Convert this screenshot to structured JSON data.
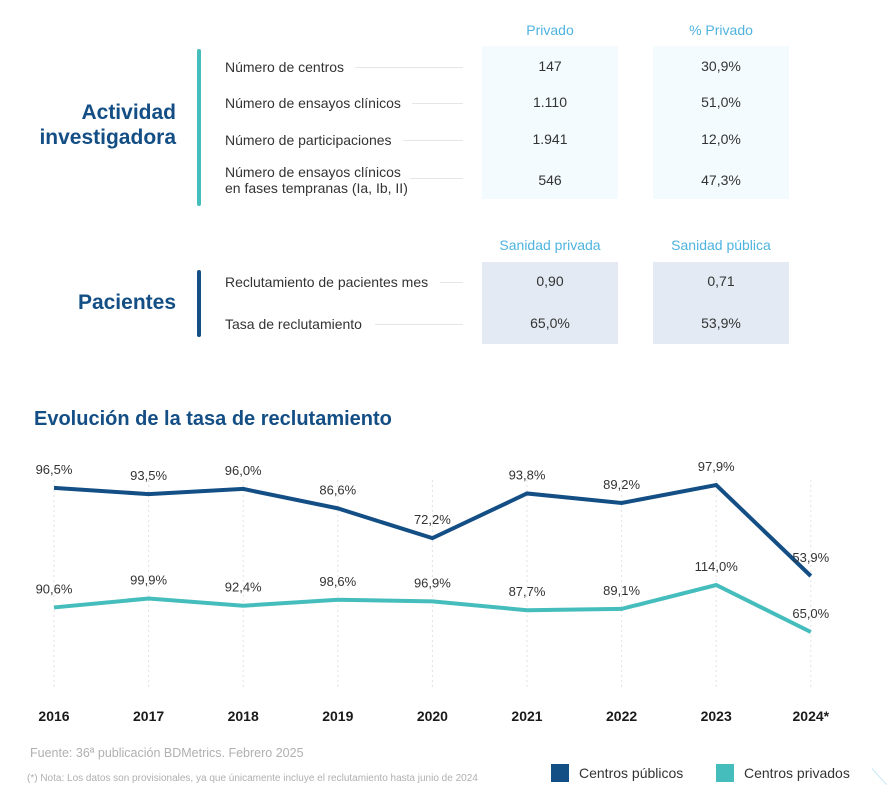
{
  "activity": {
    "title_line1": "Actividad",
    "title_line2": "investigadora",
    "columns": [
      "Privado",
      "% Privado"
    ],
    "rows": [
      {
        "label": "Número de centros",
        "values": [
          "147",
          "30,9%"
        ]
      },
      {
        "label": "Número de ensayos clínicos",
        "values": [
          "1.110",
          "51,0%"
        ]
      },
      {
        "label": "Número de participaciones",
        "values": [
          "1.941",
          "12,0%"
        ]
      },
      {
        "label_line1": "Número de ensayos clínicos",
        "label_line2": "en fases tempranas (Ia, Ib, II)",
        "values": [
          "546",
          "47,3%"
        ]
      }
    ]
  },
  "patients": {
    "title": "Pacientes",
    "columns": [
      "Sanidad privada",
      "Sanidad pública"
    ],
    "rows": [
      {
        "label": "Reclutamiento de pacientes mes",
        "values": [
          "0,90",
          "0,71"
        ]
      },
      {
        "label": "Tasa de reclutamiento",
        "values": [
          "65,0%",
          "53,9%"
        ]
      }
    ]
  },
  "colors": {
    "primary": "#134e85",
    "teal": "#45bdbd",
    "accent_text": "#4fb3e0"
  },
  "chart_data": {
    "type": "line",
    "title": "Evolución de la tasa de reclutamiento",
    "xlabel": "",
    "ylabel": "",
    "categories": [
      "2016",
      "2017",
      "2018",
      "2019",
      "2020",
      "2021",
      "2022",
      "2023",
      "2024*"
    ],
    "series": [
      {
        "name": "Centros públicos",
        "color": "#134e85",
        "values": [
          96.5,
          93.5,
          96.0,
          86.6,
          72.2,
          93.8,
          89.2,
          97.9,
          53.9
        ],
        "labels": [
          "96,5%",
          "93,5%",
          "96,0%",
          "86,6%",
          "72,2%",
          "93,8%",
          "89,2%",
          "97,9%",
          "53,9%"
        ]
      },
      {
        "name": "Centros privados",
        "color": "#45bdbd",
        "values": [
          90.6,
          99.9,
          92.4,
          98.6,
          96.9,
          87.7,
          89.1,
          114.0,
          65.0
        ],
        "labels": [
          "90,6%",
          "99,9%",
          "92,4%",
          "98,6%",
          "96,9%",
          "87,7%",
          "89,1%",
          "114,0%",
          "65,0%"
        ]
      }
    ],
    "grid": "vertical-dotted",
    "legend": "bottom-right"
  },
  "footer": {
    "source": "Fuente: 36ª publicación BDMetrics. Febrero 2025",
    "note": "(*) Nota: Los datos son provisionales, ya que únicamente incluye el reclutamiento hasta junio de 2024"
  }
}
